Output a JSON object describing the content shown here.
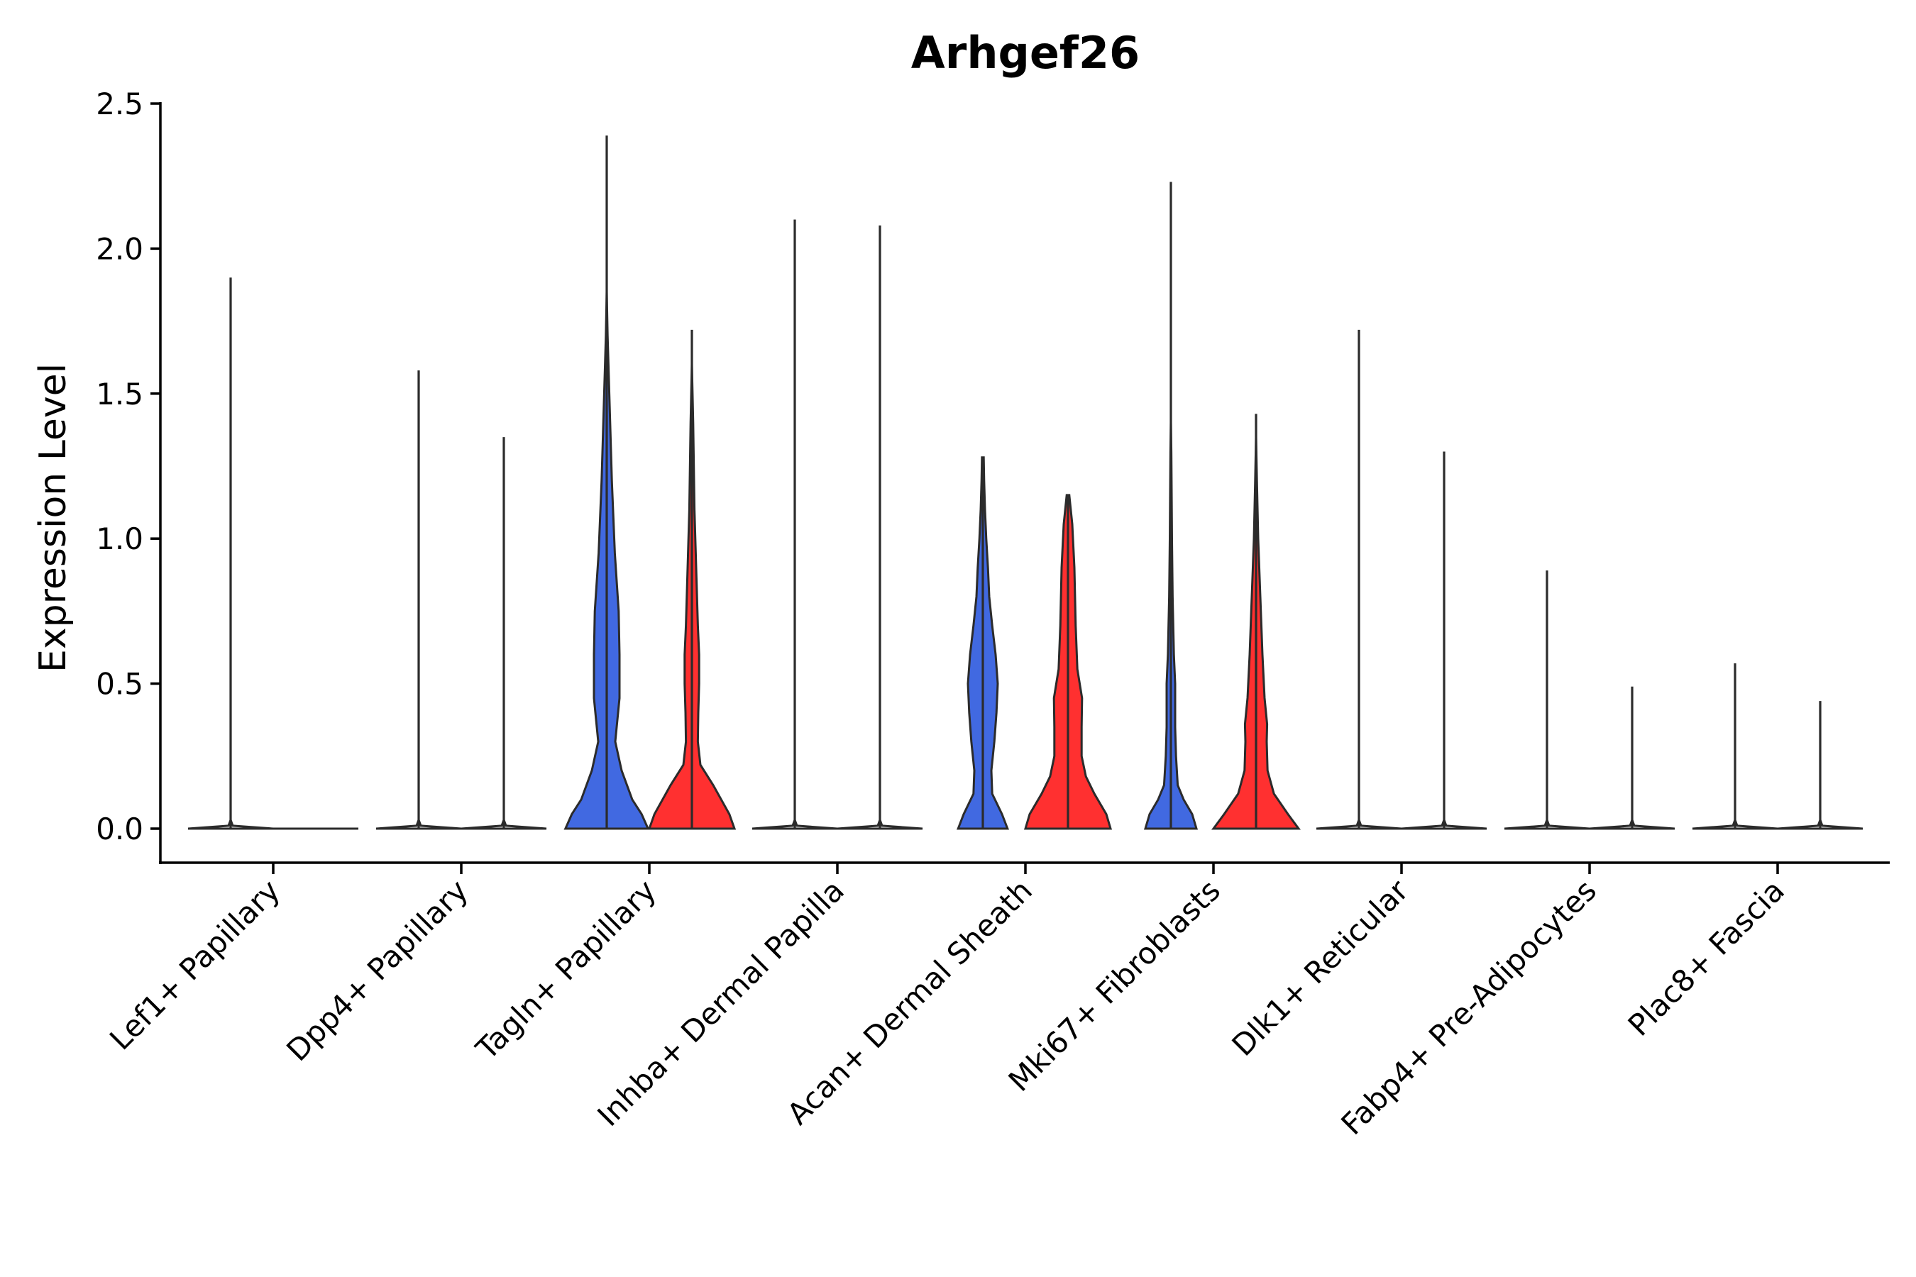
{
  "chart_data": {
    "type": "violin",
    "title": "Arhgef26",
    "ylabel": "Expression Level",
    "xlabel": "",
    "ylim": [
      -0.12,
      2.52
    ],
    "yticks": [
      0.0,
      0.5,
      1.0,
      1.5,
      2.0,
      2.5
    ],
    "ytick_labels": [
      "0.0",
      "0.5",
      "1.0",
      "1.5",
      "2.0",
      "2.5"
    ],
    "grid": false,
    "legend": "none",
    "split_colors": [
      "#4169E1",
      "#FF3030"
    ],
    "categories": [
      "Lef1+ Papillary",
      "Dpp4+ Papillary",
      "Tagln+ Papillary",
      "Inhba+ Dermal Papilla",
      "Acan+ Dermal Sheath",
      "Mki67+ Fibroblasts",
      "Dlk1+ Reticular",
      "Fabp4+ Pre-Adipocytes",
      "Plac8+ Fascia"
    ],
    "series": [
      {
        "name": "Lef1+ Papillary",
        "groups": [
          {
            "color": "#4169E1",
            "max": 1.9,
            "profile": [
              [
                0,
                1
              ],
              [
                0.01,
                0.05
              ],
              [
                0.03,
                0.0
              ]
            ]
          },
          {
            "color": "#FF3030",
            "max": 0.0,
            "profile": [
              [
                0,
                1
              ]
            ]
          }
        ]
      },
      {
        "name": "Dpp4+ Papillary",
        "groups": [
          {
            "color": "#4169E1",
            "max": 1.58,
            "profile": [
              [
                0,
                1
              ],
              [
                0.01,
                0.05
              ],
              [
                0.03,
                0.0
              ]
            ]
          },
          {
            "color": "#FF3030",
            "max": 1.35,
            "profile": [
              [
                0,
                1
              ],
              [
                0.01,
                0.05
              ],
              [
                0.03,
                0.0
              ]
            ]
          }
        ]
      },
      {
        "name": "Tagln+ Papillary",
        "groups": [
          {
            "color": "#4169E1",
            "max": 2.39,
            "profile": [
              [
                0,
                0.97
              ],
              [
                0.05,
                0.82
              ],
              [
                0.1,
                0.6
              ],
              [
                0.2,
                0.35
              ],
              [
                0.3,
                0.2
              ],
              [
                0.45,
                0.3
              ],
              [
                0.6,
                0.3
              ],
              [
                0.75,
                0.28
              ],
              [
                0.95,
                0.19
              ],
              [
                1.2,
                0.12
              ],
              [
                1.5,
                0.06
              ],
              [
                1.7,
                0.02
              ],
              [
                1.85,
                0.0
              ]
            ]
          },
          {
            "color": "#FF3030",
            "max": 1.72,
            "profile": [
              [
                0,
                1
              ],
              [
                0.05,
                0.88
              ],
              [
                0.15,
                0.5
              ],
              [
                0.22,
                0.2
              ],
              [
                0.3,
                0.14
              ],
              [
                0.4,
                0.15
              ],
              [
                0.5,
                0.17
              ],
              [
                0.6,
                0.17
              ],
              [
                0.7,
                0.14
              ],
              [
                0.9,
                0.1
              ],
              [
                1.1,
                0.06
              ],
              [
                1.4,
                0.03
              ],
              [
                1.6,
                0.0
              ]
            ]
          }
        ]
      },
      {
        "name": "Inhba+ Dermal Papilla",
        "groups": [
          {
            "color": "#4169E1",
            "max": 2.1,
            "profile": [
              [
                0,
                1
              ],
              [
                0.01,
                0.05
              ],
              [
                0.03,
                0.0
              ]
            ]
          },
          {
            "color": "#FF3030",
            "max": 2.08,
            "profile": [
              [
                0,
                1
              ],
              [
                0.01,
                0.05
              ],
              [
                0.03,
                0.0
              ]
            ]
          }
        ]
      },
      {
        "name": "Acan+ Dermal Sheath",
        "groups": [
          {
            "color": "#4169E1",
            "max": 1.28,
            "profile": [
              [
                0,
                0.58
              ],
              [
                0.05,
                0.45
              ],
              [
                0.12,
                0.22
              ],
              [
                0.2,
                0.2
              ],
              [
                0.3,
                0.27
              ],
              [
                0.4,
                0.32
              ],
              [
                0.5,
                0.35
              ],
              [
                0.6,
                0.3
              ],
              [
                0.7,
                0.22
              ],
              [
                0.8,
                0.15
              ],
              [
                0.9,
                0.12
              ],
              [
                1.0,
                0.08
              ],
              [
                1.1,
                0.05
              ],
              [
                1.2,
                0.03
              ],
              [
                1.28,
                0.02
              ]
            ]
          },
          {
            "color": "#FF3030",
            "max": 1.15,
            "profile": [
              [
                0,
                1
              ],
              [
                0.05,
                0.9
              ],
              [
                0.12,
                0.62
              ],
              [
                0.18,
                0.42
              ],
              [
                0.25,
                0.32
              ],
              [
                0.35,
                0.32
              ],
              [
                0.45,
                0.33
              ],
              [
                0.55,
                0.22
              ],
              [
                0.7,
                0.18
              ],
              [
                0.9,
                0.15
              ],
              [
                1.05,
                0.1
              ],
              [
                1.15,
                0.03
              ]
            ]
          }
        ]
      },
      {
        "name": "Mki67+ Fibroblasts",
        "groups": [
          {
            "color": "#4169E1",
            "max": 2.23,
            "profile": [
              [
                0,
                0.6
              ],
              [
                0.05,
                0.5
              ],
              [
                0.1,
                0.3
              ],
              [
                0.15,
                0.16
              ],
              [
                0.25,
                0.12
              ],
              [
                0.35,
                0.1
              ],
              [
                0.5,
                0.1
              ],
              [
                0.6,
                0.07
              ],
              [
                0.8,
                0.04
              ],
              [
                1.0,
                0.025
              ],
              [
                1.3,
                0.01
              ],
              [
                1.4,
                0.0
              ]
            ]
          },
          {
            "color": "#FF3030",
            "max": 1.43,
            "profile": [
              [
                0,
                1
              ],
              [
                0.05,
                0.75
              ],
              [
                0.12,
                0.42
              ],
              [
                0.2,
                0.27
              ],
              [
                0.3,
                0.25
              ],
              [
                0.36,
                0.26
              ],
              [
                0.45,
                0.2
              ],
              [
                0.6,
                0.15
              ],
              [
                0.8,
                0.1
              ],
              [
                1.0,
                0.05
              ],
              [
                1.2,
                0.02
              ],
              [
                1.35,
                0.0
              ]
            ]
          }
        ]
      },
      {
        "name": "Dlk1+ Reticular",
        "groups": [
          {
            "color": "#4169E1",
            "max": 1.72,
            "profile": [
              [
                0,
                1
              ],
              [
                0.01,
                0.05
              ],
              [
                0.03,
                0.0
              ]
            ]
          },
          {
            "color": "#FF3030",
            "max": 1.3,
            "profile": [
              [
                0,
                1
              ],
              [
                0.01,
                0.05
              ],
              [
                0.03,
                0.0
              ]
            ]
          }
        ]
      },
      {
        "name": "Fabp4+ Pre-Adipocytes",
        "groups": [
          {
            "color": "#4169E1",
            "max": 0.89,
            "profile": [
              [
                0,
                1
              ],
              [
                0.01,
                0.05
              ],
              [
                0.03,
                0.0
              ]
            ]
          },
          {
            "color": "#FF3030",
            "max": 0.49,
            "profile": [
              [
                0,
                1
              ],
              [
                0.01,
                0.05
              ],
              [
                0.03,
                0.0
              ]
            ]
          }
        ]
      },
      {
        "name": "Plac8+ Fascia",
        "groups": [
          {
            "color": "#4169E1",
            "max": 0.57,
            "profile": [
              [
                0,
                1
              ],
              [
                0.01,
                0.05
              ],
              [
                0.03,
                0.0
              ]
            ]
          },
          {
            "color": "#FF3030",
            "max": 0.44,
            "profile": [
              [
                0,
                1
              ],
              [
                0.01,
                0.05
              ],
              [
                0.03,
                0.0
              ]
            ]
          }
        ]
      }
    ]
  }
}
